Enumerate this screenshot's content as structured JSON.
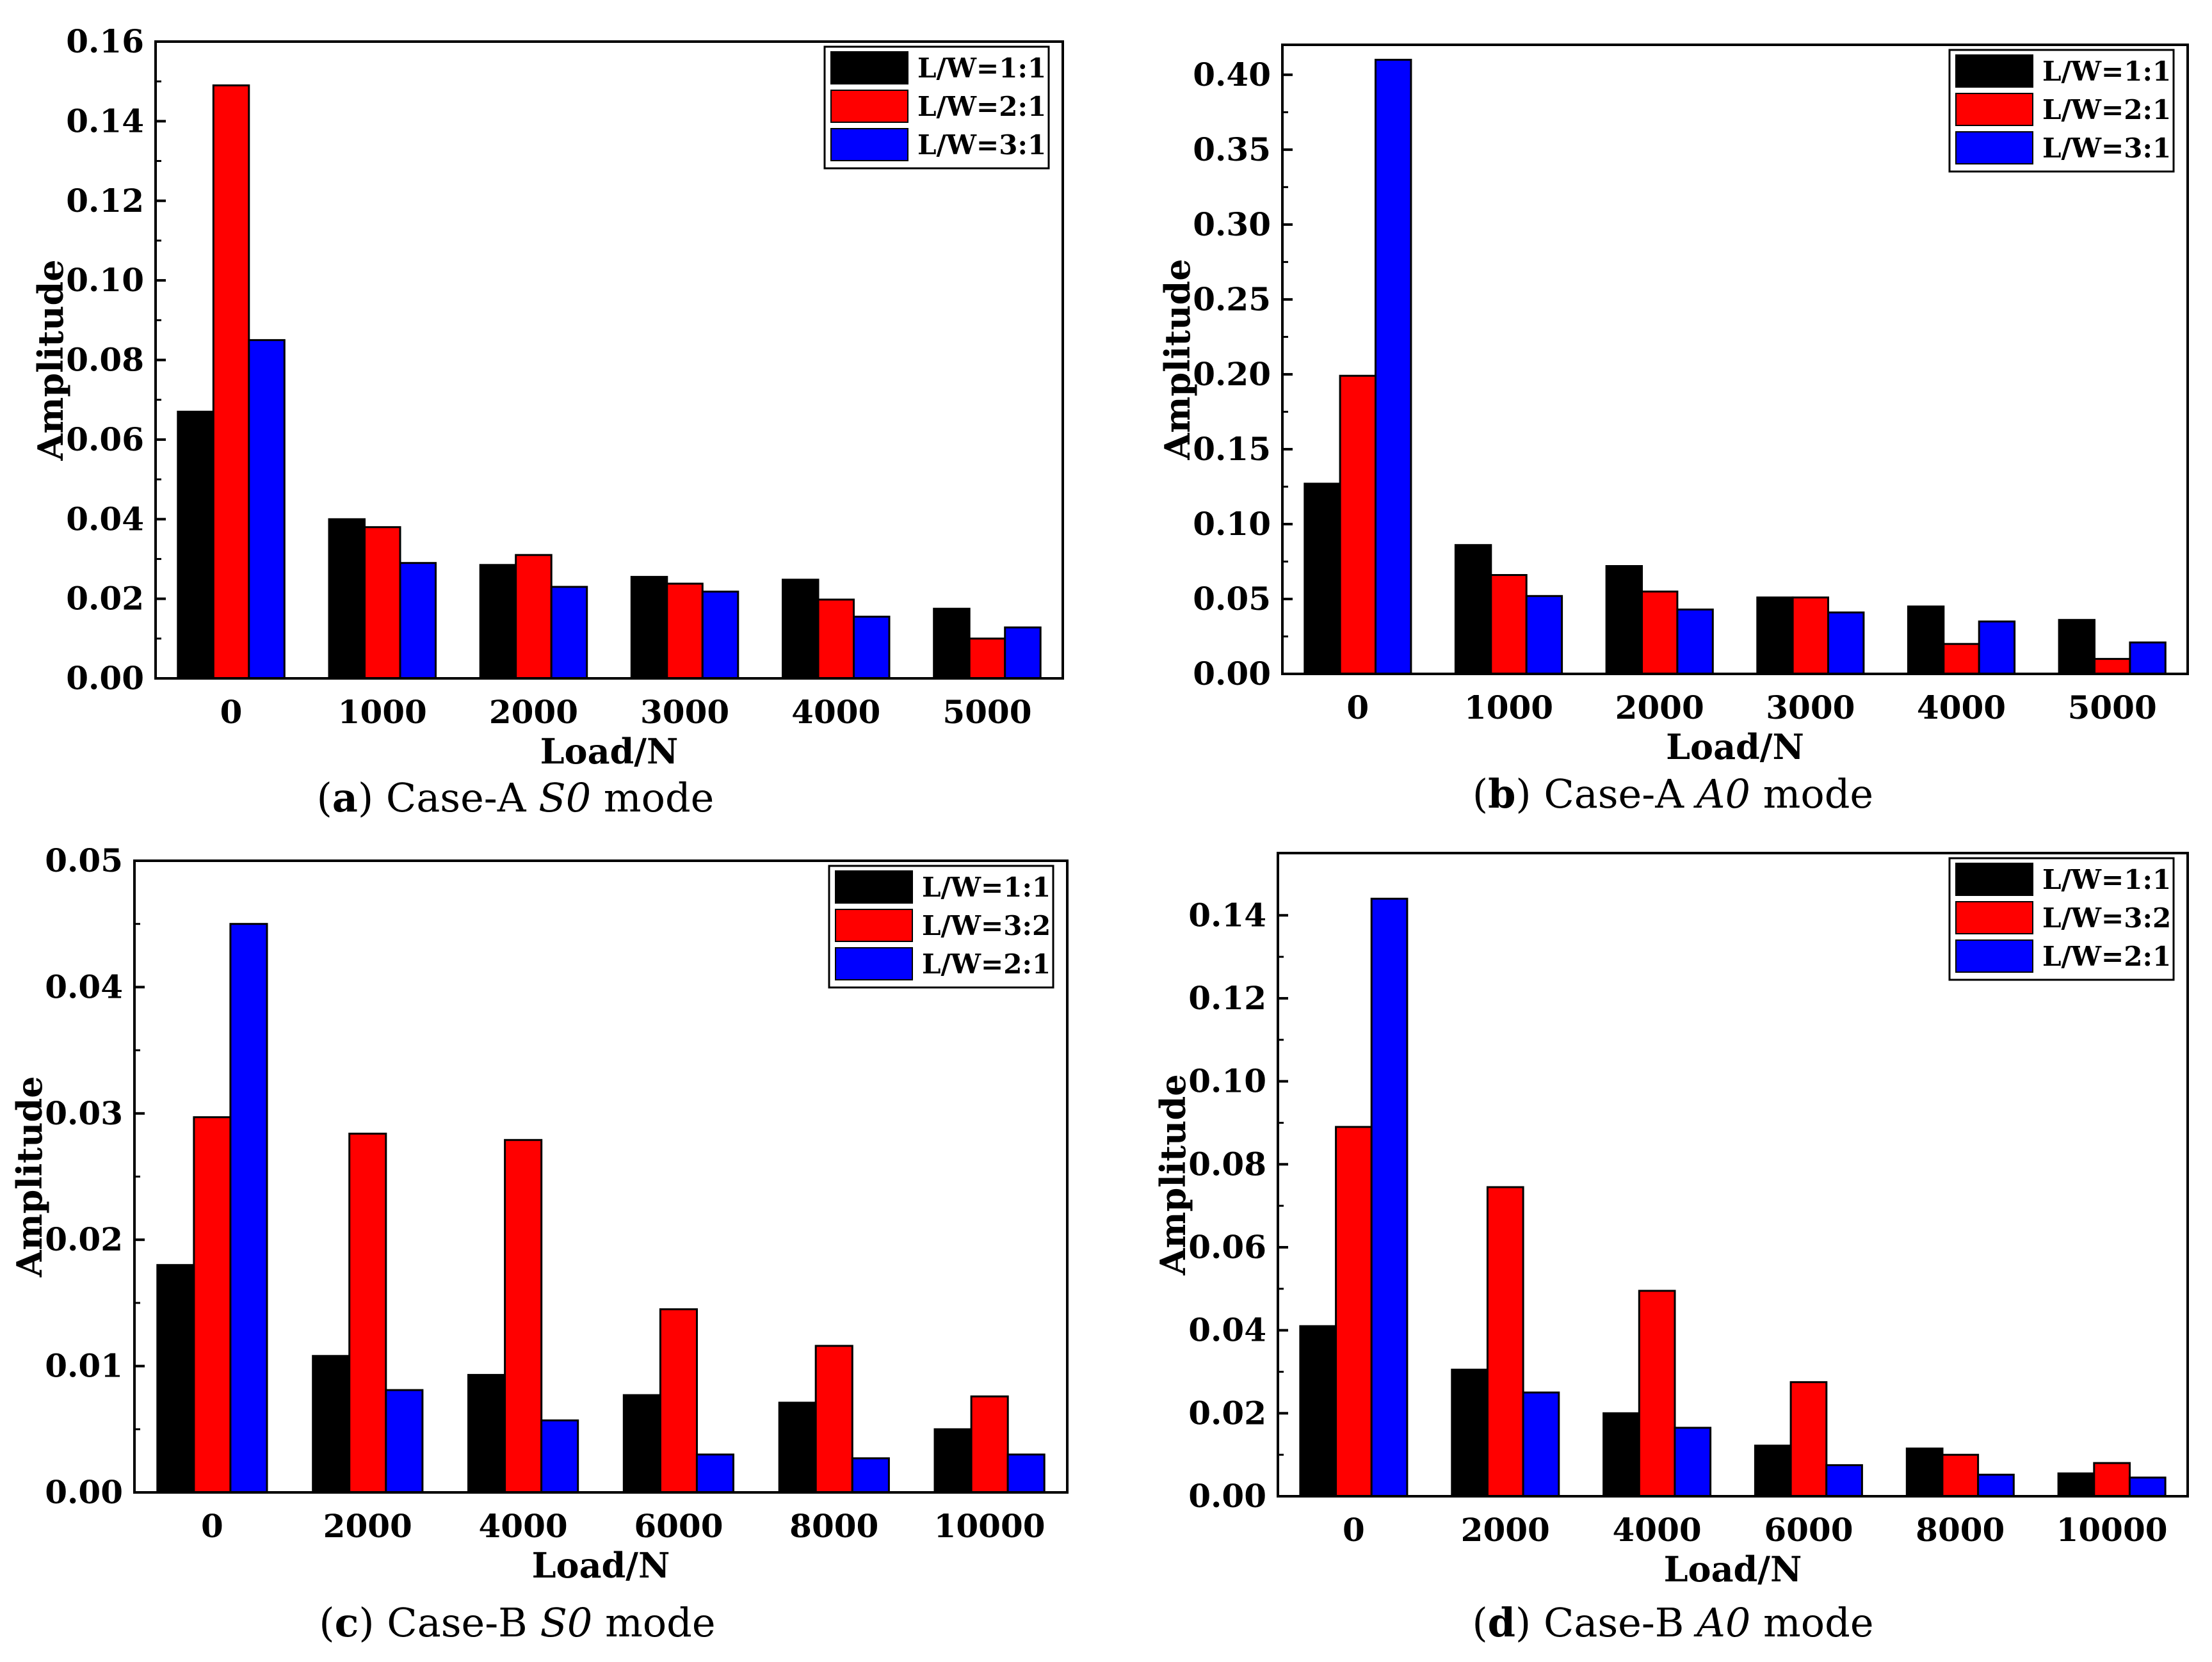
{
  "colors": {
    "series1": "#000000",
    "series2": "#ff0000",
    "series3": "#0000ff"
  },
  "chart_data": [
    {
      "type": "bar",
      "caption": {
        "open": "(",
        "letter": "a",
        "close": ")",
        "prefix": "Case-A ",
        "mode": "S0",
        "suffix": " mode"
      },
      "xlabel": "Load/N",
      "ylabel": "Amplitude",
      "ylim": [
        0,
        0.16
      ],
      "yticks": [
        "0.00",
        "0.02",
        "0.04",
        "0.06",
        "0.08",
        "0.10",
        "0.12",
        "0.14",
        "0.16"
      ],
      "categories": [
        "0",
        "1000",
        "2000",
        "3000",
        "4000",
        "5000"
      ],
      "legend_position": "top-right",
      "series": [
        {
          "name": "L/W=1:1",
          "values": [
            0.067,
            0.04,
            0.0285,
            0.0255,
            0.0248,
            0.0175
          ]
        },
        {
          "name": "L/W=2:1",
          "values": [
            0.149,
            0.038,
            0.031,
            0.0238,
            0.0198,
            0.01
          ]
        },
        {
          "name": "L/W=3:1",
          "values": [
            0.085,
            0.029,
            0.023,
            0.0218,
            0.0155,
            0.0128
          ]
        }
      ]
    },
    {
      "type": "bar",
      "caption": {
        "open": "(",
        "letter": "b",
        "close": ")",
        "prefix": "Case-A ",
        "mode": "A0",
        "suffix": " mode"
      },
      "xlabel": "Load/N",
      "ylabel": "Amplitude",
      "ylim": [
        0,
        0.42
      ],
      "yticks": [
        "0.00",
        "0.05",
        "0.10",
        "0.15",
        "0.20",
        "0.25",
        "0.30",
        "0.35",
        "0.40"
      ],
      "categories": [
        "0",
        "1000",
        "2000",
        "3000",
        "4000",
        "5000"
      ],
      "legend_position": "top-right",
      "series": [
        {
          "name": "L/W=1:1",
          "values": [
            0.127,
            0.086,
            0.072,
            0.051,
            0.045,
            0.036
          ]
        },
        {
          "name": "L/W=2:1",
          "values": [
            0.199,
            0.066,
            0.055,
            0.051,
            0.02,
            0.01
          ]
        },
        {
          "name": "L/W=3:1",
          "values": [
            0.41,
            0.052,
            0.043,
            0.041,
            0.035,
            0.021
          ]
        }
      ]
    },
    {
      "type": "bar",
      "caption": {
        "open": "(",
        "letter": "c",
        "close": ")",
        "prefix": "Case-B ",
        "mode": "S0",
        "suffix": " mode"
      },
      "xlabel": "Load/N",
      "ylabel": "Amplitude",
      "ylim": [
        0,
        0.05
      ],
      "yticks": [
        "0.00",
        "0.01",
        "0.02",
        "0.03",
        "0.04",
        "0.05"
      ],
      "categories": [
        "0",
        "2000",
        "4000",
        "6000",
        "8000",
        "10000"
      ],
      "legend_position": "top-right",
      "series": [
        {
          "name": "L/W=1:1",
          "values": [
            0.018,
            0.0108,
            0.0093,
            0.0077,
            0.0071,
            0.005
          ]
        },
        {
          "name": "L/W=3:2",
          "values": [
            0.0297,
            0.0284,
            0.0279,
            0.0145,
            0.0116,
            0.0076
          ]
        },
        {
          "name": "L/W=2:1",
          "values": [
            0.045,
            0.0081,
            0.0057,
            0.003,
            0.0027,
            0.003
          ]
        }
      ]
    },
    {
      "type": "bar",
      "caption": {
        "open": "(",
        "letter": "d",
        "close": ")",
        "prefix": "Case-B ",
        "mode": "A0",
        "suffix": " mode"
      },
      "xlabel": "Load/N",
      "ylabel": "Amplitude",
      "ylim": [
        0,
        0.155
      ],
      "yticks": [
        "0.00",
        "0.02",
        "0.04",
        "0.06",
        "0.08",
        "0.10",
        "0.12",
        "0.14"
      ],
      "categories": [
        "0",
        "2000",
        "4000",
        "6000",
        "8000",
        "10000"
      ],
      "legend_position": "top-right",
      "series": [
        {
          "name": "L/W=1:1",
          "values": [
            0.041,
            0.0305,
            0.02,
            0.0122,
            0.0115,
            0.0055
          ]
        },
        {
          "name": "L/W=3:2",
          "values": [
            0.089,
            0.0745,
            0.0495,
            0.0275,
            0.01,
            0.008
          ]
        },
        {
          "name": "L/W=2:1",
          "values": [
            0.144,
            0.025,
            0.0165,
            0.0075,
            0.0052,
            0.0045
          ]
        }
      ]
    }
  ]
}
